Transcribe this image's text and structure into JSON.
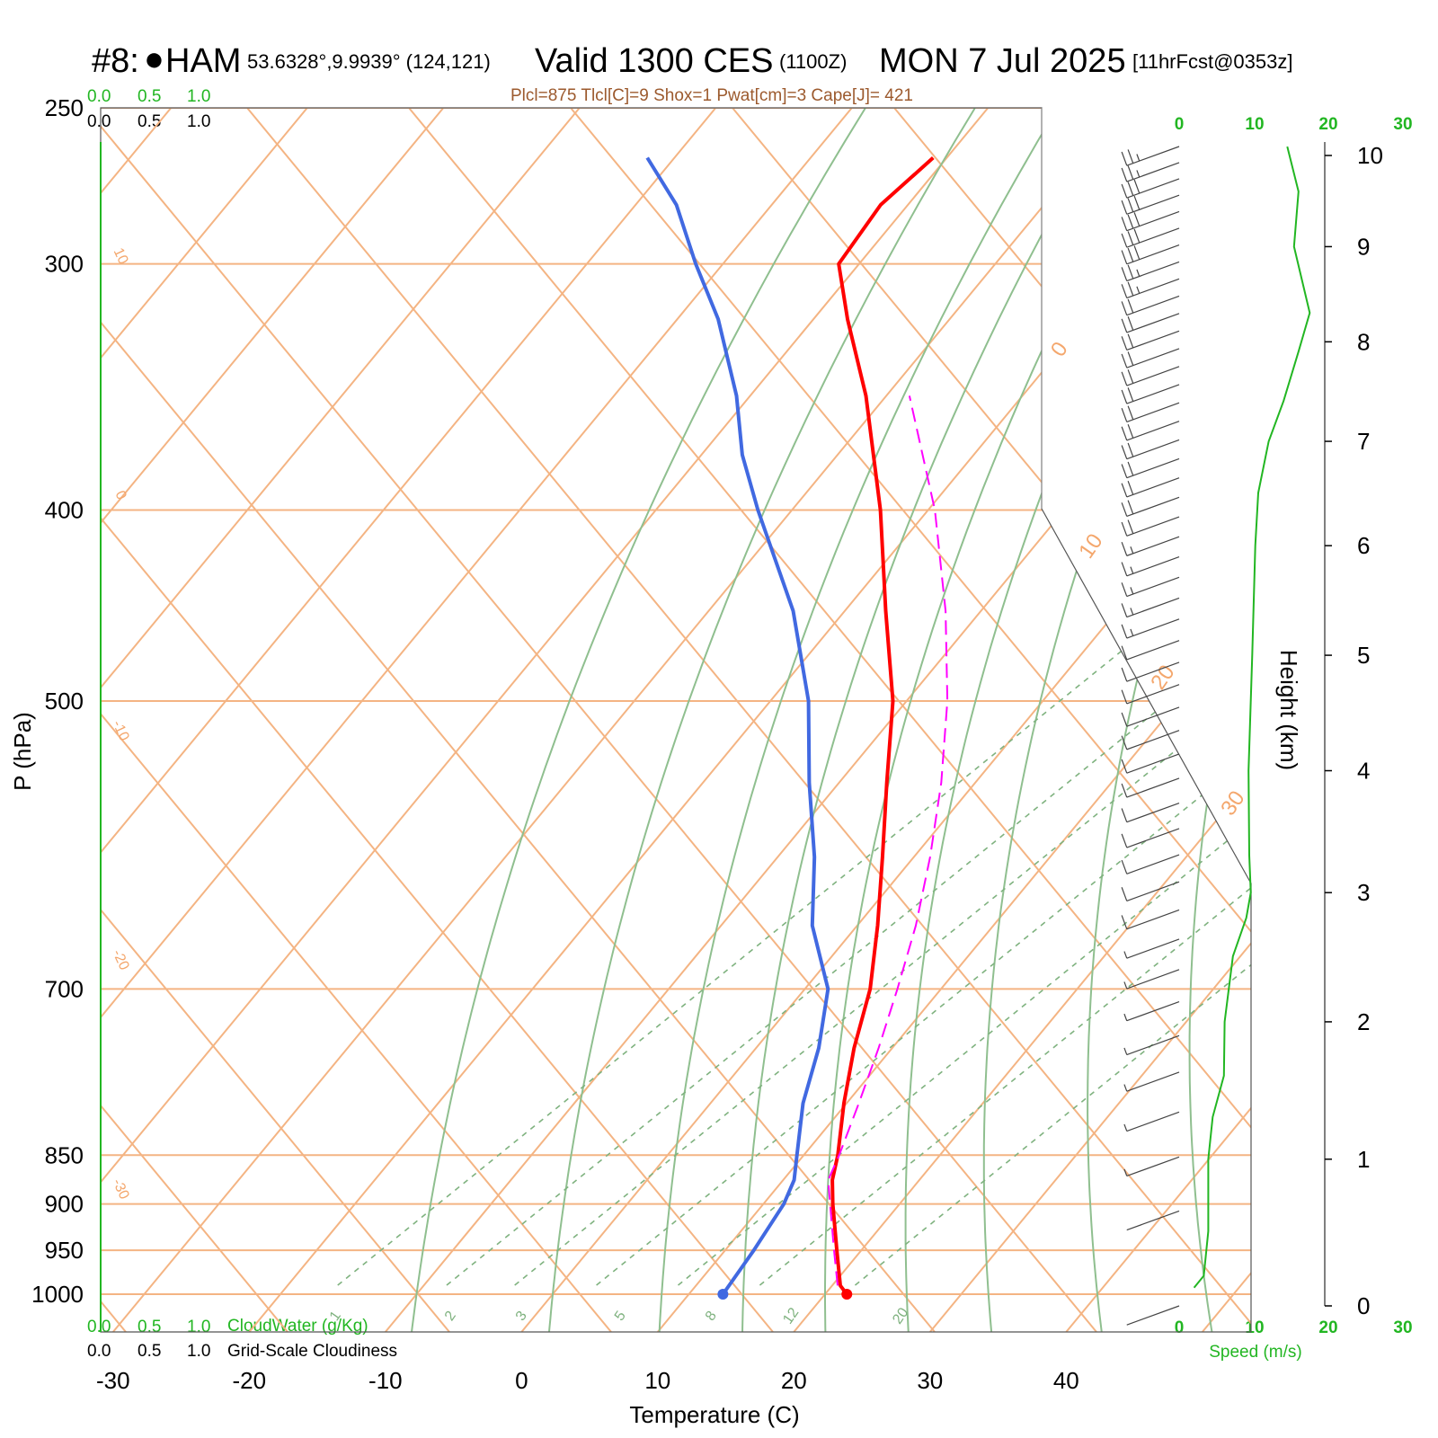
{
  "header": {
    "station_id": "#8:",
    "station_marker": "●",
    "station_name": "HAM",
    "coords": "53.6328°,9.9939° (124,121)",
    "valid": "Valid 1300 CES",
    "utc": "(1100Z)",
    "date": "MON 7 Jul 2025",
    "forecast": "[11hrFcst@0353z]"
  },
  "indices_line": "Plcl=875 Tlcl[C]=9 Shox=1 Pwat[cm]=3 Cape[J]= 421",
  "top_scales": {
    "cloudwater_ticks": [
      "0.0",
      "0.5",
      "1.0"
    ],
    "cloudiness_ticks": [
      "0.0",
      "0.5",
      "1.0"
    ],
    "speed_ticks": [
      "0",
      "10",
      "20",
      "30"
    ]
  },
  "bottom_scales": {
    "cloudwater_ticks": [
      "0.0",
      "0.5",
      "1.0"
    ],
    "cloudwater_label": "CloudWater (g/Kg)",
    "cloudiness_ticks": [
      "0.0",
      "0.5",
      "1.0"
    ],
    "cloudiness_label": "Grid-Scale Cloudiness",
    "speed_ticks": [
      "0",
      "10",
      "20",
      "30"
    ],
    "speed_label": "Speed (m/s)"
  },
  "chart_data": {
    "type": "line",
    "subtype": "skew-T log-P sounding",
    "xlabel": "Temperature (C)",
    "ylabel": "P (hPa)",
    "y2label": "Height (km)",
    "x_ticks": [
      -30,
      -20,
      -10,
      0,
      10,
      20,
      30,
      40
    ],
    "pressure_ticks": [
      250,
      300,
      400,
      500,
      700,
      850,
      900,
      950,
      1000
    ],
    "height_ticks_km": [
      0,
      1,
      2,
      3,
      4,
      5,
      6,
      7,
      8,
      9,
      10
    ],
    "isotherm_labels": [
      "10",
      "0",
      "-10",
      "-20",
      "-30",
      "0",
      "10",
      "20",
      "30"
    ],
    "mixing_ratio_labels": [
      "1",
      "2",
      "3",
      "5",
      "8",
      "12",
      "20"
    ],
    "series": [
      {
        "name": "Temperature",
        "color": "#ff0000",
        "points": [
          {
            "p": 1000,
            "t": 21.6
          },
          {
            "p": 990,
            "t": 20.6
          },
          {
            "p": 950,
            "t": 18.2
          },
          {
            "p": 900,
            "t": 15.1
          },
          {
            "p": 875,
            "t": 13.6
          },
          {
            "p": 850,
            "t": 12.5
          },
          {
            "p": 800,
            "t": 9.8
          },
          {
            "p": 750,
            "t": 7.2
          },
          {
            "p": 700,
            "t": 4.8
          },
          {
            "p": 650,
            "t": 1.5
          },
          {
            "p": 600,
            "t": -2.3
          },
          {
            "p": 550,
            "t": -6.5
          },
          {
            "p": 500,
            "t": -11.0
          },
          {
            "p": 450,
            "t": -17.0
          },
          {
            "p": 400,
            "t": -23.5
          },
          {
            "p": 350,
            "t": -31.5
          },
          {
            "p": 320,
            "t": -37.5
          },
          {
            "p": 300,
            "t": -41.5
          },
          {
            "p": 280,
            "t": -42.0
          },
          {
            "p": 265,
            "t": -41.0
          }
        ]
      },
      {
        "name": "Dewpoint",
        "color": "#4169e1",
        "points": [
          {
            "p": 1000,
            "t": 12.5
          },
          {
            "p": 950,
            "t": 12.1
          },
          {
            "p": 900,
            "t": 11.5
          },
          {
            "p": 875,
            "t": 10.8
          },
          {
            "p": 850,
            "t": 9.5
          },
          {
            "p": 800,
            "t": 6.8
          },
          {
            "p": 750,
            "t": 4.6
          },
          {
            "p": 700,
            "t": 1.7
          },
          {
            "p": 650,
            "t": -3.3
          },
          {
            "p": 600,
            "t": -7.3
          },
          {
            "p": 550,
            "t": -12.2
          },
          {
            "p": 500,
            "t": -17.2
          },
          {
            "p": 450,
            "t": -23.8
          },
          {
            "p": 400,
            "t": -32.5
          },
          {
            "p": 375,
            "t": -37.0
          },
          {
            "p": 350,
            "t": -41.0
          },
          {
            "p": 320,
            "t": -47.0
          },
          {
            "p": 300,
            "t": -52.0
          },
          {
            "p": 280,
            "t": -57.0
          },
          {
            "p": 265,
            "t": -62.0
          }
        ]
      },
      {
        "name": "Parcel",
        "color": "#ff00ff",
        "dashed": true,
        "points": [
          {
            "p": 990,
            "t": 20.4
          },
          {
            "p": 950,
            "t": 18.0
          },
          {
            "p": 900,
            "t": 14.9
          },
          {
            "p": 875,
            "t": 13.3
          },
          {
            "p": 850,
            "t": 12.6
          },
          {
            "p": 800,
            "t": 10.9
          },
          {
            "p": 750,
            "t": 9.0
          },
          {
            "p": 700,
            "t": 6.8
          },
          {
            "p": 650,
            "t": 4.3
          },
          {
            "p": 600,
            "t": 1.2
          },
          {
            "p": 550,
            "t": -2.5
          },
          {
            "p": 500,
            "t": -7.0
          },
          {
            "p": 450,
            "t": -12.6
          },
          {
            "p": 400,
            "t": -19.5
          },
          {
            "p": 350,
            "t": -28.3
          }
        ]
      }
    ],
    "wind_speed_profile": {
      "name": "Speed (m/s)",
      "color": "#22b622",
      "points": [
        {
          "h": 0.12,
          "v": 2.0
        },
        {
          "h": 0.2,
          "v": 3.3
        },
        {
          "h": 0.5,
          "v": 3.9
        },
        {
          "h": 1.0,
          "v": 3.9
        },
        {
          "h": 1.3,
          "v": 4.5
        },
        {
          "h": 1.6,
          "v": 6.0
        },
        {
          "h": 2.0,
          "v": 6.1
        },
        {
          "h": 2.5,
          "v": 7.2
        },
        {
          "h": 2.8,
          "v": 9.0
        },
        {
          "h": 3.0,
          "v": 9.6
        },
        {
          "h": 3.3,
          "v": 9.4
        },
        {
          "h": 4.0,
          "v": 9.3
        },
        {
          "h": 5.0,
          "v": 9.8
        },
        {
          "h": 6.0,
          "v": 10.2
        },
        {
          "h": 6.5,
          "v": 10.6
        },
        {
          "h": 7.0,
          "v": 12.0
        },
        {
          "h": 7.4,
          "v": 14.0
        },
        {
          "h": 7.9,
          "v": 16.0
        },
        {
          "h": 8.3,
          "v": 17.5
        },
        {
          "h": 9.0,
          "v": 15.4
        },
        {
          "h": 9.6,
          "v": 16.0
        },
        {
          "h": 10.1,
          "v": 14.5
        }
      ]
    },
    "wind_barbs_speed_kt": [
      2,
      4,
      5,
      6,
      6,
      7,
      8,
      8,
      9,
      10,
      10,
      11,
      11,
      12,
      12,
      12,
      12,
      12,
      12,
      13,
      14,
      15,
      16,
      17,
      18,
      19,
      20,
      20,
      21,
      22,
      22,
      21,
      20,
      20,
      20,
      20,
      21,
      22,
      24,
      26,
      28,
      30,
      32,
      33,
      32,
      30,
      28,
      26
    ],
    "grid": true
  }
}
